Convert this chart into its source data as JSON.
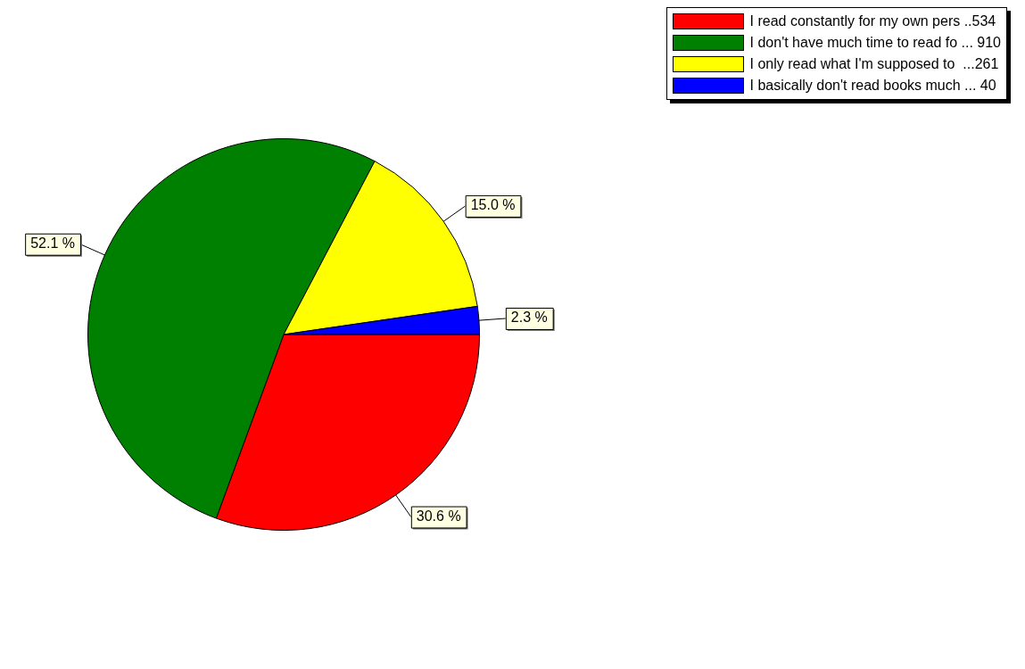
{
  "chart_data": {
    "type": "pie",
    "legend": "top right",
    "categories": [
      "I read constantly for my own pers ..534",
      "I don't have much time to read fo ... 910",
      "I only read what I'm supposed to  ...261",
      "I basically don't read books much ... 40"
    ],
    "values": [
      30.6,
      52.1,
      15.0,
      2.3
    ],
    "colors": [
      "#ff0000",
      "#008000",
      "#ffff00",
      "#0000ff"
    ],
    "value_labels": [
      "30.6 %",
      "52.1 %",
      "15.0 %",
      "2.3 %"
    ]
  }
}
